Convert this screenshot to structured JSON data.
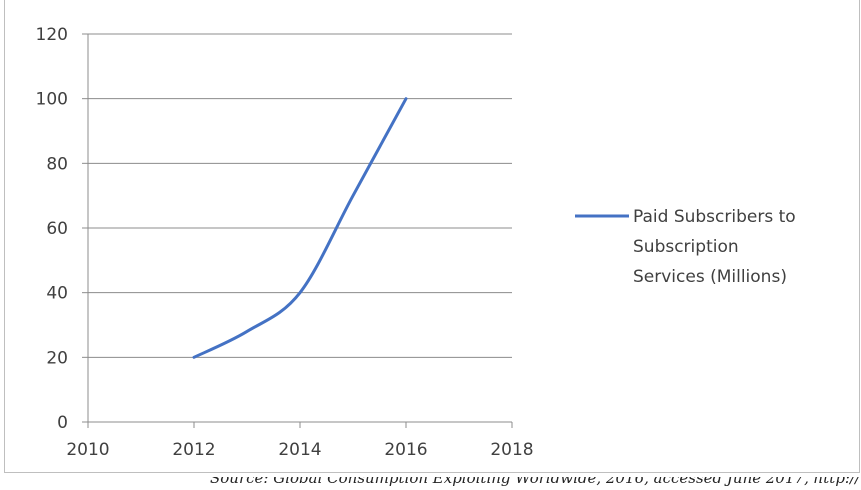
{
  "chart_data": {
    "type": "line",
    "title": "",
    "xlabel": "",
    "ylabel": "",
    "xlim": [
      2010,
      2018
    ],
    "ylim": [
      0,
      120
    ],
    "x_ticks": [
      2010,
      2012,
      2014,
      2016,
      2018
    ],
    "y_ticks": [
      0,
      20,
      40,
      60,
      80,
      100,
      120
    ],
    "grid": "horizontal",
    "legend_position": "right",
    "series": [
      {
        "name": "Paid Subscribers to Subscription Services (Millions)",
        "legend_lines": [
          "Paid Subscribers to",
          "Subscription",
          "Services (Millions)"
        ],
        "color": "#4472c4",
        "x": [
          2012,
          2013,
          2014,
          2015,
          2016
        ],
        "y": [
          20,
          28,
          40,
          70,
          100
        ]
      }
    ]
  },
  "footnote": {
    "text": "Source: Global Consumption Exploiting Worldwide, 2016, accessed June 2017, http://"
  }
}
